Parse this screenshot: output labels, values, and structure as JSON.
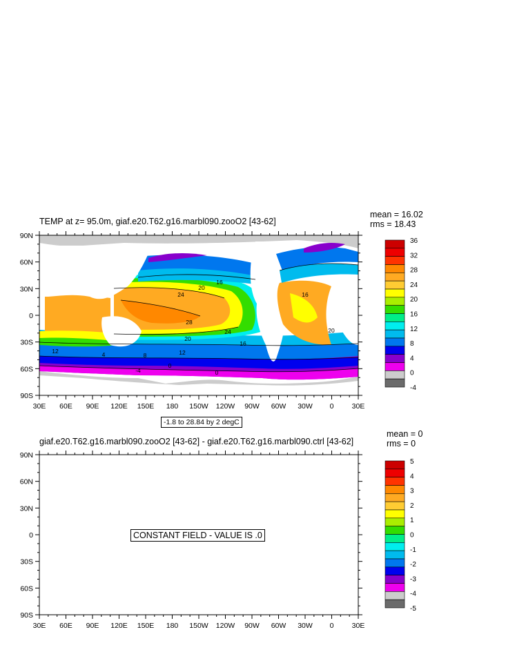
{
  "panels": [
    {
      "title": "TEMP at z=  95.0m, giaf.e20.T62.g16.marbl090.zooO2 [43-62]",
      "mean": "mean = 16.02",
      "rms": "rms = 18.43",
      "note": "-1.8 to 28.84 by 2 degC",
      "colorbar_labels": [
        "36",
        "32",
        "28",
        "24",
        "20",
        "16",
        "12",
        "8",
        "4",
        "0",
        "-4"
      ],
      "contour_labels": [
        "24",
        "20",
        "16",
        "28",
        "24",
        "20",
        "16",
        "12",
        "8",
        "4",
        "0",
        "0",
        "-4",
        "12",
        "20",
        "16"
      ]
    },
    {
      "title": "giaf.e20.T62.g16.marbl090.zooO2 [43-62] - giaf.e20.T62.g16.marbl090.ctrl [43-62]",
      "mean": "mean = 0",
      "rms": "rms = 0",
      "constant_label": "CONSTANT FIELD - VALUE IS .0",
      "colorbar_labels": [
        "5",
        "4",
        "3",
        "2",
        "1",
        "0",
        "-1",
        "-2",
        "-3",
        "-4",
        "-5"
      ]
    }
  ],
  "lat_labels": [
    "90N",
    "60N",
    "30N",
    "0",
    "30S",
    "60S",
    "90S"
  ],
  "lon_labels": [
    "30E",
    "60E",
    "90E",
    "120E",
    "150E",
    "180",
    "150W",
    "120W",
    "90W",
    "60W",
    "30W",
    "0",
    "30E"
  ],
  "colorbar_colors": [
    "#6b6b6b",
    "#cccccc",
    "#ee00ee",
    "#8800cc",
    "#0000ee",
    "#0077ee",
    "#00bbee",
    "#00eeee",
    "#00ee88",
    "#33dd00",
    "#aaee00",
    "#ffff00",
    "#ffcc33",
    "#ffaa22",
    "#ff8800",
    "#ff3300",
    "#ee0000",
    "#cc0000"
  ],
  "colors": {
    "land": "#cccccc"
  }
}
